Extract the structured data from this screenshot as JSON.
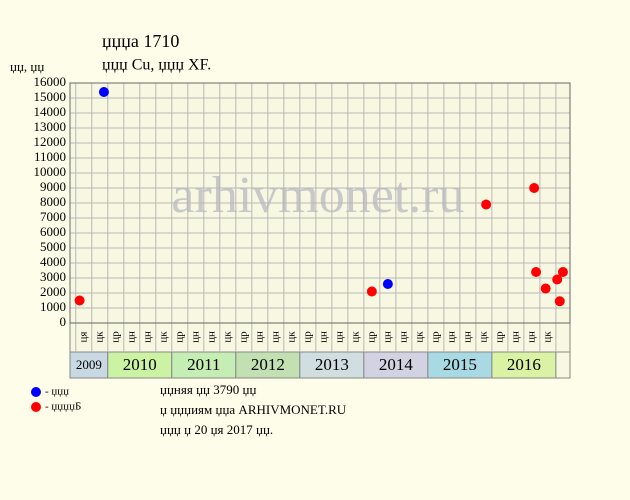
{
  "chart_data": {
    "type": "scatter",
    "title": "џџџа 1710",
    "subtitle": "џџџ Cu, џџџ XF.",
    "y_label": "џџ, џџ",
    "watermark": "arhivmonet.ru",
    "xlim": [
      2009.41,
      2017.22
    ],
    "ylim": [
      0,
      16000
    ],
    "yticks": [
      0,
      1000,
      2000,
      3000,
      4000,
      5000,
      6000,
      7000,
      8000,
      9000,
      10000,
      11000,
      12000,
      13000,
      14000,
      15000,
      16000
    ],
    "xticks": [
      {
        "value": 2009.5,
        "label": "ця"
      },
      {
        "value": 2009.75,
        "label": "цк"
      },
      {
        "value": 2010,
        "label": "цр"
      },
      {
        "value": 2010.25,
        "label": "цн"
      },
      {
        "value": 2010.5,
        "label": "цн"
      },
      {
        "value": 2010.75,
        "label": "цк"
      },
      {
        "value": 2011,
        "label": "цр"
      },
      {
        "value": 2011.25,
        "label": "цн"
      },
      {
        "value": 2011.5,
        "label": "цн"
      },
      {
        "value": 2011.75,
        "label": "цк"
      },
      {
        "value": 2012,
        "label": "цр"
      },
      {
        "value": 2012.25,
        "label": "цн"
      },
      {
        "value": 2012.5,
        "label": "цн"
      },
      {
        "value": 2012.75,
        "label": "цк"
      },
      {
        "value": 2013,
        "label": "цр"
      },
      {
        "value": 2013.25,
        "label": "цн"
      },
      {
        "value": 2013.5,
        "label": "цн"
      },
      {
        "value": 2013.75,
        "label": "цк"
      },
      {
        "value": 2014,
        "label": "цр"
      },
      {
        "value": 2014.25,
        "label": "цн"
      },
      {
        "value": 2014.5,
        "label": "цн"
      },
      {
        "value": 2014.75,
        "label": "цк"
      },
      {
        "value": 2015,
        "label": "цр"
      },
      {
        "value": 2015.25,
        "label": "цн"
      },
      {
        "value": 2015.5,
        "label": "цн"
      },
      {
        "value": 2015.75,
        "label": "цк"
      },
      {
        "value": 2016,
        "label": "цр"
      },
      {
        "value": 2016.25,
        "label": "цн"
      },
      {
        "value": 2016.5,
        "label": "цн"
      },
      {
        "value": 2016.75,
        "label": "цк"
      },
      {
        "value": 2017,
        "label": ""
      }
    ],
    "years": [
      {
        "label": "2009",
        "start": 2009.41,
        "end": 2010,
        "color": "#c9d9e3"
      },
      {
        "label": "2010",
        "start": 2010,
        "end": 2011,
        "color": "#ccf2a4"
      },
      {
        "label": "2011",
        "start": 2011,
        "end": 2012,
        "color": "#c4eeb4"
      },
      {
        "label": "2012",
        "start": 2012,
        "end": 2013,
        "color": "#c2e0b2"
      },
      {
        "label": "2013",
        "start": 2013,
        "end": 2014,
        "color": "#d0dee2"
      },
      {
        "label": "2014",
        "start": 2014,
        "end": 2015,
        "color": "#d2d2e2"
      },
      {
        "label": "2015",
        "start": 2015,
        "end": 2016,
        "color": "#a9d9e3"
      },
      {
        "label": "2016",
        "start": 2016,
        "end": 2017,
        "color": "#d9f2a4"
      }
    ],
    "grid": true,
    "series": [
      {
        "name": "- џџџ",
        "color": "#0000ff",
        "x": [
          2009.94,
          2014.375
        ],
        "values": [
          15400,
          2600
        ]
      },
      {
        "name": "- џџџџБ",
        "color": "#ff0000",
        "x": [
          2009.56,
          2014.125,
          2015.91,
          2016.66,
          2016.69,
          2016.84,
          2017.02,
          2017.06,
          2017.11
        ],
        "values": [
          1500,
          2100,
          7900,
          9000,
          3400,
          2300,
          2900,
          1450,
          3400
        ]
      }
    ],
    "notes": [
      "џџняя џџ 3790 џџ",
      "џ џџџиям џџа ARHIVMONET.RU",
      "џџџ џ 20 џя 2017 џџ."
    ]
  }
}
